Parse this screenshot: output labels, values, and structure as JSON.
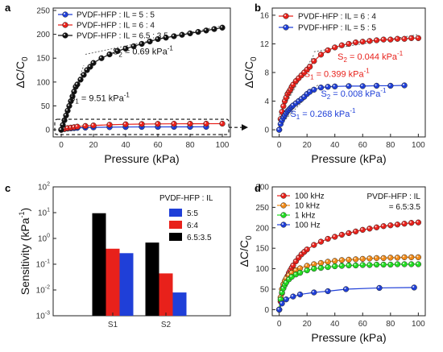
{
  "chart_data": [
    {
      "panel": "a",
      "type": "scatter",
      "xlabel": "Pressure (kPa)",
      "ylabel": "ΔC/C0",
      "xlim": [
        -5,
        105
      ],
      "ylim": [
        -15,
        255
      ],
      "xticks": [
        0,
        20,
        40,
        60,
        80,
        100
      ],
      "yticks": [
        0,
        50,
        100,
        150,
        200,
        250
      ],
      "legend_position": "top-left",
      "series": [
        {
          "name": "PVDF-HFP : IL = 5 : 5",
          "color": "#1f3fd8",
          "x": [
            0,
            2,
            4,
            6,
            8,
            10,
            15,
            20,
            30,
            40,
            50,
            60,
            70,
            80,
            90
          ],
          "y": [
            0,
            1.5,
            2.5,
            3,
            3.5,
            4,
            4.5,
            5,
            5.5,
            5.8,
            6,
            6,
            6.1,
            6.1,
            6.2
          ]
        },
        {
          "name": "PVDF-HFP : IL = 6 : 4",
          "color": "#e8211b",
          "x": [
            0,
            2,
            4,
            6,
            8,
            10,
            15,
            20,
            30,
            40,
            50,
            60,
            70,
            80,
            90,
            100
          ],
          "y": [
            0,
            2,
            3.5,
            4.5,
            5.5,
            6.5,
            8,
            9,
            10.5,
            11.5,
            12,
            12.3,
            12.5,
            12.6,
            12.7,
            12.8
          ]
        },
        {
          "name": "PVDF-HFP : IL = 6.5 : 3.5",
          "color": "#111111",
          "x": [
            0,
            1,
            2,
            3,
            4,
            5,
            6,
            7,
            8,
            9,
            10,
            12,
            14,
            16,
            18,
            20,
            25,
            30,
            35,
            40,
            45,
            50,
            55,
            60,
            65,
            70,
            75,
            80,
            85,
            90,
            95,
            100
          ],
          "y": [
            0,
            10,
            20,
            30,
            40,
            50,
            60,
            70,
            80,
            90,
            95,
            105,
            115,
            125,
            132,
            140,
            150,
            158,
            165,
            170,
            175,
            180,
            185,
            190,
            193,
            196,
            199,
            202,
            205,
            208,
            211,
            214
          ]
        }
      ],
      "annotations": [
        {
          "text": "S",
          "sub": "2",
          "rest": " = 0.69 kPa",
          "sup": "-1",
          "color": "#111111"
        },
        {
          "text": "S",
          "sub": "1",
          "rest": " = 9.51 kPa",
          "sup": "-1",
          "color": "#111111"
        }
      ]
    },
    {
      "panel": "b",
      "type": "scatter",
      "xlabel": "Pressure (kPa)",
      "ylabel": "ΔC/C0",
      "xlim": [
        -5,
        105
      ],
      "ylim": [
        -1,
        17
      ],
      "xticks": [
        0,
        20,
        40,
        60,
        80,
        100
      ],
      "yticks": [
        0,
        4,
        8,
        12,
        16
      ],
      "legend_position": "top-left",
      "series": [
        {
          "name": "PVDF-HFP : IL = 6 : 4",
          "color": "#e8211b",
          "x": [
            0,
            1,
            2,
            3,
            4,
            5,
            6,
            7,
            8,
            9,
            10,
            12,
            14,
            16,
            18,
            20,
            22,
            25,
            30,
            35,
            40,
            45,
            50,
            55,
            60,
            65,
            70,
            75,
            80,
            85,
            90,
            95,
            100
          ],
          "y": [
            0,
            1.5,
            2.5,
            3.3,
            4,
            4.5,
            5,
            5.3,
            5.6,
            6,
            6.3,
            6.8,
            7.2,
            7.6,
            8,
            8.4,
            8.8,
            9.6,
            10.5,
            11.1,
            11.5,
            11.8,
            12,
            12.2,
            12.3,
            12.4,
            12.5,
            12.6,
            12.6,
            12.7,
            12.7,
            12.8,
            12.8
          ]
        },
        {
          "name": "PVDF-HFP : IL = 5 : 5",
          "color": "#1f3fd8",
          "x": [
            0,
            1,
            2,
            3,
            4,
            5,
            6,
            7,
            8,
            9,
            10,
            12,
            14,
            16,
            18,
            20,
            22,
            25,
            30,
            35,
            40,
            50,
            60,
            70,
            80,
            90
          ],
          "y": [
            0,
            0.8,
            1.3,
            1.7,
            2,
            2.3,
            2.6,
            2.8,
            3,
            3.2,
            3.4,
            3.7,
            4,
            4.3,
            4.6,
            5,
            5.3,
            5.6,
            5.9,
            6,
            6.05,
            6.1,
            6.1,
            6.15,
            6.15,
            6.2
          ]
        }
      ],
      "annotations": [
        {
          "text": "S",
          "sub": "2",
          "rest": " = 0.044 kPa",
          "sup": "-1",
          "color": "#e8211b"
        },
        {
          "text": "S",
          "sub": "1",
          "rest": " = 0.399 kPa",
          "sup": "-1",
          "color": "#e8211b"
        },
        {
          "text": "S",
          "sub": "2",
          "rest": " = 0.008 kPa",
          "sup": "-1",
          "color": "#1f3fd8"
        },
        {
          "text": "S",
          "sub": "1",
          "rest": " = 0.268 kPa",
          "sup": "-1",
          "color": "#1f3fd8"
        }
      ]
    },
    {
      "panel": "c",
      "type": "bar",
      "ylabel": "Sensitivity (kPa",
      "ylabel_sup": "-1",
      "ylabel_end": ")",
      "ylog": true,
      "ylim_exp": [
        -3,
        2
      ],
      "categories": [
        "S1",
        "S2"
      ],
      "legend_title": "PVDF-HFP : IL",
      "legend_position": "top-right",
      "series": [
        {
          "name": "6.5:3.5",
          "color": "#000000",
          "values": [
            9.51,
            0.69
          ]
        },
        {
          "name": "6:4",
          "color": "#e8211b",
          "values": [
            0.399,
            0.044
          ]
        },
        {
          "name": "5:5",
          "color": "#1f3fd8",
          "values": [
            0.268,
            0.008
          ]
        }
      ],
      "legend_order": [
        2,
        1,
        0
      ]
    },
    {
      "panel": "d",
      "type": "scatter",
      "xlabel": "Pressure (kPa)",
      "ylabel": "ΔC/C0",
      "xlim": [
        -5,
        105
      ],
      "ylim": [
        -15,
        300
      ],
      "xticks": [
        0,
        20,
        40,
        60,
        80,
        100
      ],
      "yticks": [
        0,
        50,
        100,
        150,
        200,
        250,
        300
      ],
      "legend_position": "top-left",
      "note_lines": [
        "PVDF-HFP : IL",
        "= 6.5:3.5"
      ],
      "series": [
        {
          "name": "100 kHz",
          "color": "#e8211b",
          "x": [
            0,
            1,
            2,
            3,
            4,
            5,
            6,
            7,
            8,
            9,
            10,
            12,
            14,
            16,
            18,
            20,
            25,
            30,
            35,
            40,
            45,
            50,
            55,
            60,
            65,
            70,
            75,
            80,
            85,
            90,
            95,
            100
          ],
          "y": [
            0,
            20,
            40,
            55,
            65,
            75,
            82,
            90,
            96,
            102,
            108,
            118,
            127,
            135,
            141,
            147,
            158,
            166,
            173,
            178,
            183,
            187,
            191,
            195,
            198,
            201,
            204,
            206,
            208,
            210,
            212,
            213
          ]
        },
        {
          "name": "10 kHz",
          "color": "#f08a18",
          "x": [
            0,
            1,
            2,
            3,
            4,
            5,
            7,
            9,
            12,
            15,
            20,
            25,
            30,
            35,
            40,
            45,
            50,
            55,
            60,
            65,
            70,
            75,
            80,
            85,
            90,
            95,
            100
          ],
          "y": [
            0,
            30,
            50,
            62,
            70,
            76,
            84,
            90,
            96,
            101,
            107,
            111,
            114,
            117,
            119,
            121,
            122,
            123,
            124,
            125,
            126,
            126,
            127,
            127,
            128,
            128,
            128
          ]
        },
        {
          "name": "1 kHz",
          "color": "#22dd22",
          "x": [
            0,
            1,
            2,
            3,
            4,
            5,
            7,
            9,
            12,
            15,
            20,
            25,
            30,
            35,
            40,
            45,
            50,
            55,
            60,
            65,
            70,
            75,
            80,
            85,
            90,
            95,
            100
          ],
          "y": [
            0,
            25,
            42,
            52,
            60,
            66,
            74,
            80,
            86,
            90,
            96,
            100,
            102,
            104,
            106,
            107,
            108,
            108,
            109,
            109,
            110,
            110,
            110,
            111,
            111,
            111,
            111
          ]
        },
        {
          "name": "100 Hz",
          "color": "#1f3fd8",
          "x": [
            0,
            2,
            5,
            10,
            15,
            25,
            35,
            48,
            72,
            97
          ],
          "y": [
            0,
            15,
            25,
            32,
            37,
            42,
            45,
            50,
            53,
            54
          ]
        }
      ]
    }
  ]
}
